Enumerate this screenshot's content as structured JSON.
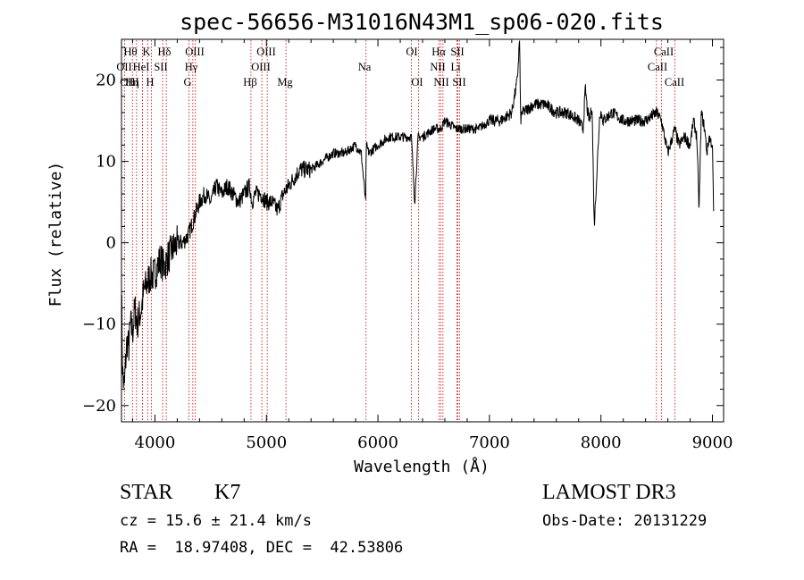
{
  "chart_data": {
    "type": "line",
    "title": "spec-56656-M31016N43M1_sp06-020.fits",
    "xlabel": "Wavelength (Å)",
    "ylabel": "Flux (relative)",
    "xlim": [
      3700,
      9100
    ],
    "ylim": [
      -22,
      25
    ],
    "xticks": [
      4000,
      5000,
      6000,
      7000,
      8000,
      9000
    ],
    "yticks": [
      -20,
      -10,
      0,
      10,
      20
    ],
    "series": [
      {
        "name": "spectrum",
        "x": [
          3700,
          3710,
          3725,
          3740,
          3750,
          3765,
          3780,
          3800,
          3820,
          3840,
          3860,
          3880,
          3900,
          3930,
          3960,
          3990,
          4020,
          4050,
          4080,
          4110,
          4150,
          4200,
          4250,
          4300,
          4350,
          4400,
          4450,
          4500,
          4550,
          4600,
          4650,
          4700,
          4750,
          4800,
          4850,
          4870,
          4900,
          4950,
          5000,
          5050,
          5100,
          5150,
          5200,
          5250,
          5300,
          5400,
          5500,
          5600,
          5700,
          5800,
          5850,
          5890,
          5895,
          5920,
          6000,
          6100,
          6200,
          6300,
          6330,
          6360,
          6400,
          6500,
          6563,
          6600,
          6700,
          6800,
          6900,
          7000,
          7100,
          7200,
          7250,
          7270,
          7280,
          7290,
          7300,
          7400,
          7500,
          7600,
          7700,
          7800,
          7840,
          7860,
          7880,
          7900,
          7920,
          7940,
          7990,
          8000,
          8020,
          8100,
          8200,
          8300,
          8400,
          8500,
          8542,
          8600,
          8662,
          8700,
          8750,
          8800,
          8830,
          8860,
          8880,
          8900,
          8930,
          8950,
          8970,
          9000,
          9010
        ],
        "values": [
          -5,
          -16,
          -18,
          -14,
          -12,
          -13,
          -10,
          -11,
          -8,
          -10,
          -9,
          -8,
          -6,
          -5,
          -4,
          -4,
          -3,
          -2,
          -3,
          -2,
          -1,
          0,
          0,
          1,
          3,
          5,
          6,
          5,
          7,
          6,
          7,
          6,
          5,
          6,
          7,
          5,
          6,
          6,
          5,
          5,
          4,
          6,
          7,
          8,
          9,
          9,
          10,
          11,
          11,
          12,
          11,
          5,
          12,
          11,
          12,
          13,
          13,
          13,
          5,
          13,
          13,
          14,
          14,
          15,
          14,
          14,
          14,
          15,
          15,
          16,
          20,
          25,
          15,
          16,
          16,
          17,
          17,
          16,
          16,
          15,
          14,
          19,
          16,
          15,
          17,
          2,
          16,
          16,
          15,
          16,
          15,
          15,
          15,
          16,
          15,
          11,
          14,
          12,
          13,
          12,
          15,
          13,
          4,
          16,
          14,
          11,
          13,
          12,
          4
        ],
        "annotations": [
          {
            "x": 3890,
            "y": 21,
            "text": ""
          },
          {
            "x": 7280,
            "y": 25,
            "text": ""
          }
        ]
      }
    ],
    "lines": [
      {
        "name": "Hθ",
        "x": 3798
      },
      {
        "name": "OII",
        "x": 3727
      },
      {
        "name": "Hη",
        "x": 3835
      },
      {
        "name": "Hε",
        "x": 3889
      },
      {
        "name": "K",
        "x": 3934
      },
      {
        "name": "H",
        "x": 3968
      },
      {
        "name": "HeI",
        "x": 3889
      },
      {
        "name": "SII",
        "x": 4069
      },
      {
        "name": "Hδ",
        "x": 4102
      },
      {
        "name": "OIII",
        "x": 4363
      },
      {
        "name": "Hγ",
        "x": 4340
      },
      {
        "name": "G",
        "x": 4305
      },
      {
        "name": "Hβ",
        "x": 4861
      },
      {
        "name": "OIII",
        "x": 4959
      },
      {
        "name": "OIII",
        "x": 5007
      },
      {
        "name": "Mg",
        "x": 5175
      },
      {
        "name": "Na",
        "x": 5893
      },
      {
        "name": "OI",
        "x": 6300
      },
      {
        "name": "OI",
        "x": 6363
      },
      {
        "name": "Hα",
        "x": 6563
      },
      {
        "name": "NII",
        "x": 6548
      },
      {
        "name": "NII",
        "x": 6583
      },
      {
        "name": "SII",
        "x": 6717
      },
      {
        "name": "Li",
        "x": 6708
      },
      {
        "name": "SII",
        "x": 6731
      },
      {
        "name": "CaII",
        "x": 8498
      },
      {
        "name": "CaII",
        "x": 8542
      },
      {
        "name": "CaII",
        "x": 8662
      }
    ]
  },
  "info": {
    "class": "STAR",
    "subclass": "K7",
    "survey": "LAMOST DR3",
    "cz": "cz = 15.6 ± 21.4 km/s",
    "obs_date": "Obs-Date: 20131229",
    "coords": "RA =  18.97408, DEC =  42.53806"
  }
}
